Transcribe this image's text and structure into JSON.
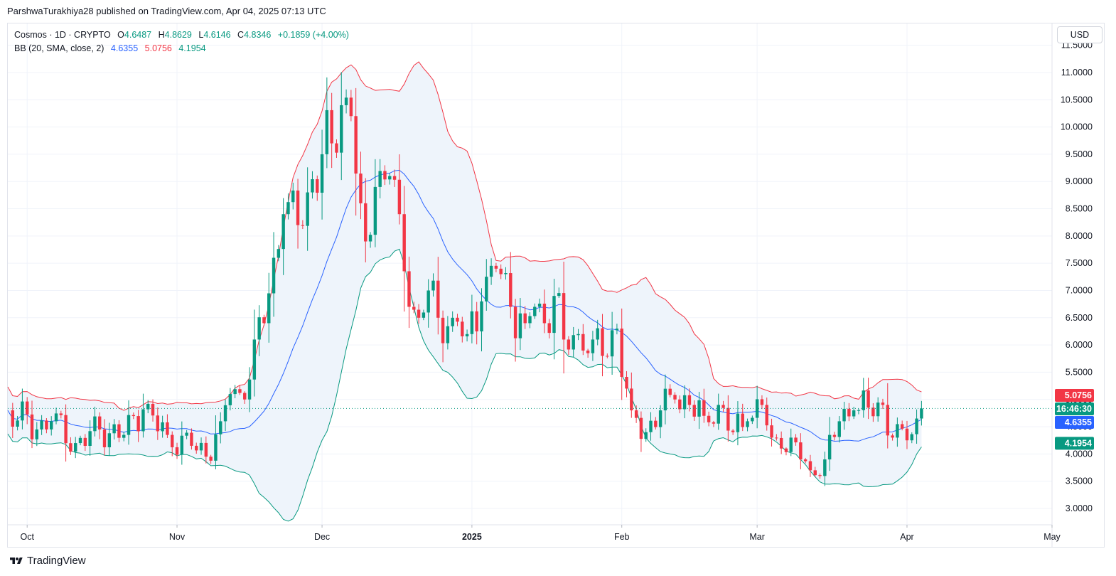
{
  "caption": "ParshwaTurakhiya28 published on TradingView.com, Apr 04, 2025 07:13 UTC",
  "legend": {
    "symbol": "Cosmos · 1D · CRYPTO",
    "open_label": "O",
    "open": "4.6487",
    "high_label": "H",
    "high": "4.8629",
    "low_label": "L",
    "low": "4.6146",
    "close_label": "C",
    "close": "4.8346",
    "change": "+0.1859 (+4.00%)",
    "bb_label": "BB (20, SMA, close, 2)",
    "bb_basis": "4.6355",
    "bb_upper": "5.0756",
    "bb_lower": "4.1954"
  },
  "currency_button": "USD",
  "brand": "TradingView",
  "colors": {
    "up": "#089981",
    "down": "#f23645",
    "basis": "#2962ff",
    "upper": "#f23645",
    "lower": "#089981",
    "band_fill": "#eef4fb",
    "grid": "#f0f3fa",
    "price_line": "#089981"
  },
  "chart_data": {
    "type": "candlestick",
    "title": "",
    "y_axis": {
      "ticks": [
        "3.0000",
        "3.5000",
        "4.0000",
        "4.5000",
        "5.0000",
        "5.5000",
        "6.0000",
        "6.5000",
        "7.0000",
        "7.5000",
        "8.0000",
        "8.5000",
        "9.0000",
        "9.5000",
        "10.0000",
        "10.5000",
        "11.0000",
        "11.5000"
      ],
      "range": [
        2.7,
        11.9
      ]
    },
    "x_axis": {
      "ticks": [
        {
          "label": "Oct",
          "date": "2024-10-01"
        },
        {
          "label": "Nov",
          "date": "2024-11-01"
        },
        {
          "label": "Dec",
          "date": "2024-12-01"
        },
        {
          "label": "2025",
          "date": "2025-01-01",
          "bold": true
        },
        {
          "label": "Feb",
          "date": "2025-02-01"
        },
        {
          "label": "Mar",
          "date": "2025-03-01"
        },
        {
          "label": "Apr",
          "date": "2025-04-01"
        },
        {
          "label": "May",
          "date": "2025-05-01"
        }
      ],
      "range": [
        "2024-09-27",
        "2025-05-01"
      ]
    },
    "price_labels": [
      {
        "text": "5.0756",
        "value": 5.0756,
        "color": "#f23645"
      },
      {
        "text": "16:46:30",
        "value": 4.8346,
        "color": "#089981"
      },
      {
        "text": "4.6355",
        "value": 4.6355,
        "color": "#2962ff"
      },
      {
        "text": "4.1954",
        "value": 4.1954,
        "color": "#089981"
      }
    ],
    "current_price": 4.8346,
    "close_anchors": [
      [
        "2024-09-27",
        4.8
      ],
      [
        "2024-10-03",
        4.45
      ],
      [
        "2024-10-06",
        4.6
      ],
      [
        "2024-10-11",
        4.2
      ],
      [
        "2024-10-16",
        4.45
      ],
      [
        "2024-10-21",
        4.35
      ],
      [
        "2024-10-25",
        4.82
      ],
      [
        "2024-10-30",
        4.35
      ],
      [
        "2024-11-04",
        4.15
      ],
      [
        "2024-11-07",
        3.95
      ],
      [
        "2024-11-10",
        4.6
      ],
      [
        "2024-11-12",
        5.1
      ],
      [
        "2024-11-15",
        5.0
      ],
      [
        "2024-11-17",
        6.1
      ],
      [
        "2024-11-19",
        6.4
      ],
      [
        "2024-11-21",
        7.6
      ],
      [
        "2024-11-23",
        8.4
      ],
      [
        "2024-11-26",
        8.2
      ],
      [
        "2024-11-28",
        8.8
      ],
      [
        "2024-12-01",
        9.5
      ],
      [
        "2024-12-03",
        9.7
      ],
      [
        "2024-12-05",
        10.4
      ],
      [
        "2024-12-07",
        10.2
      ],
      [
        "2024-12-09",
        8.6
      ],
      [
        "2024-12-10",
        7.9
      ],
      [
        "2024-12-12",
        8.9
      ],
      [
        "2024-12-15",
        9.1
      ],
      [
        "2024-12-17",
        8.4
      ],
      [
        "2024-12-19",
        6.7
      ],
      [
        "2024-12-21",
        6.5
      ],
      [
        "2024-12-23",
        7.0
      ],
      [
        "2024-12-25",
        6.5
      ],
      [
        "2024-12-28",
        6.5
      ],
      [
        "2024-12-31",
        6.2
      ],
      [
        "2025-01-03",
        6.8
      ],
      [
        "2025-01-06",
        7.4
      ],
      [
        "2025-01-07",
        7.3
      ],
      [
        "2025-01-09",
        6.7
      ],
      [
        "2025-01-12",
        6.4
      ],
      [
        "2025-01-14",
        6.7
      ],
      [
        "2025-01-16",
        6.4
      ],
      [
        "2025-01-18",
        6.9
      ],
      [
        "2025-01-20",
        6.1
      ],
      [
        "2025-01-23",
        6.2
      ],
      [
        "2025-01-26",
        6.1
      ],
      [
        "2025-01-28",
        5.8
      ],
      [
        "2025-01-31",
        6.3
      ],
      [
        "2025-02-02",
        5.2
      ],
      [
        "2025-02-03",
        4.8
      ],
      [
        "2025-02-06",
        4.4
      ],
      [
        "2025-02-09",
        4.8
      ],
      [
        "2025-02-12",
        5.0
      ],
      [
        "2025-02-15",
        4.9
      ],
      [
        "2025-02-18",
        4.7
      ],
      [
        "2025-02-21",
        4.9
      ],
      [
        "2025-02-24",
        4.4
      ],
      [
        "2025-02-27",
        4.6
      ],
      [
        "2025-03-02",
        4.9
      ],
      [
        "2025-03-04",
        4.3
      ],
      [
        "2025-03-06",
        4.1
      ],
      [
        "2025-03-08",
        4.3
      ],
      [
        "2025-03-10",
        3.9
      ],
      [
        "2025-03-12",
        3.7
      ],
      [
        "2025-03-15",
        3.9
      ],
      [
        "2025-03-18",
        4.6
      ],
      [
        "2025-03-21",
        4.8
      ],
      [
        "2025-03-24",
        4.85
      ],
      [
        "2025-03-27",
        4.9
      ],
      [
        "2025-03-29",
        4.3
      ],
      [
        "2025-04-01",
        4.25
      ],
      [
        "2025-04-03",
        4.65
      ],
      [
        "2025-04-04",
        4.8346
      ]
    ],
    "bollinger": {
      "period": 20,
      "source": "close",
      "mult": 2,
      "upper": 5.0756,
      "basis": 4.6355,
      "lower": 4.1954
    }
  }
}
